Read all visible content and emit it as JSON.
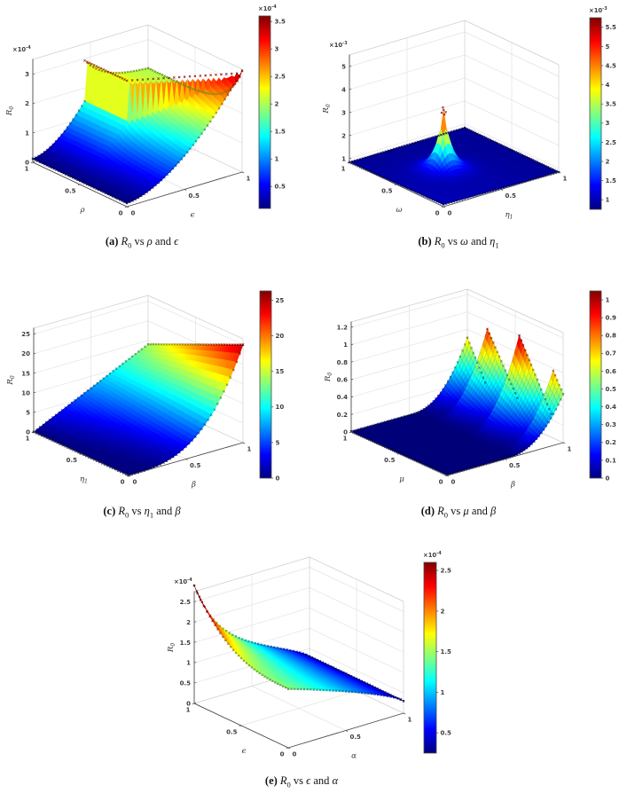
{
  "chart_data": [
    {
      "type": "surface3d",
      "caption": {
        "index": "(a)",
        "r": "R",
        "r_sub": "0",
        "vs": "vs",
        "var1": "ρ",
        "var1_sub": "",
        "and": "and",
        "var2": "ϵ",
        "var2_sub": ""
      },
      "x_axis": {
        "label": "ρ",
        "label_sub": "",
        "tick_values": [
          1,
          0.5,
          0
        ],
        "tick_labels": [
          "1",
          "0.5",
          "0"
        ],
        "range": [
          0,
          1
        ]
      },
      "y_axis": {
        "label": "ϵ",
        "label_sub": "",
        "tick_values": [
          0,
          0.5,
          1
        ],
        "tick_labels": [
          "0",
          "0.5",
          "1"
        ],
        "range": [
          0,
          1
        ]
      },
      "z_axis": {
        "label": "R",
        "label_sub": "0",
        "tick_values": [
          0,
          1,
          2,
          3
        ],
        "tick_labels": [
          "0",
          "1",
          "2",
          "3"
        ],
        "exp": "-4",
        "min": 0,
        "max": 3.5
      },
      "colorbar": {
        "tick_values": [
          0.5,
          1,
          1.5,
          2,
          2.5,
          3,
          3.5
        ],
        "tick_labels": [
          "0.5",
          "1",
          "1.5",
          "2",
          "2.5",
          "3",
          "3.5"
        ],
        "exp": "-4",
        "clim": [
          0.1,
          3.6
        ]
      },
      "surface_model": {
        "name": "fold_cliff",
        "desc": "R0 grows with ϵ; a discontinuous red cliff near ϵ≈0.45 separates the low blue bowl from the green upper sheet; max ≈3.4e-4 at ϵ=1, ρ=0",
        "params": {
          "floor": 0.12,
          "vc": 0.45,
          "pw": 1.7,
          "lowEdge": 1.55,
          "lowEdgeMax": 3.45,
          "upBack": 1.98,
          "upEdge": 2.95,
          "upEdgeMax": 3.4,
          "decay": 0.18
        },
        "crest_markers": true
      }
    },
    {
      "type": "surface3d",
      "caption": {
        "index": "(b)",
        "r": "R",
        "r_sub": "0",
        "vs": "vs",
        "var1": "ω",
        "var1_sub": "",
        "and": "and",
        "var2": "η",
        "var2_sub": "1"
      },
      "x_axis": {
        "label": "ω",
        "label_sub": "",
        "tick_values": [
          1,
          0.5,
          0
        ],
        "tick_labels": [
          "1",
          "0.5",
          "0"
        ],
        "range": [
          0,
          1
        ]
      },
      "y_axis": {
        "label": "η",
        "label_sub": "1",
        "tick_values": [
          0,
          0.5,
          1
        ],
        "tick_labels": [
          "0",
          "0.5",
          "1"
        ],
        "range": [
          0,
          1
        ]
      },
      "z_axis": {
        "label": "R",
        "label_sub": "0",
        "tick_values": [
          1,
          2,
          3,
          4,
          5
        ],
        "tick_labels": [
          "1",
          "2",
          "3",
          "4",
          "5"
        ],
        "exp": "-3",
        "min": 0.84,
        "max": 5.5
      },
      "colorbar": {
        "tick_values": [
          1,
          1.5,
          2,
          2.5,
          3,
          3.5,
          4,
          4.5,
          5,
          5.5
        ],
        "tick_labels": [
          "1",
          "1.5",
          "2",
          "2.5",
          "3",
          "3.5",
          "4",
          "4.5",
          "5",
          "5.5"
        ],
        "exp": "-3",
        "clim": [
          0.75,
          5.75
        ]
      },
      "surface_model": {
        "name": "spike",
        "desc": "Flat dark-blue sheet ≈0.9e-3 with one sharp red spike at ω≈0.5, η1≈0.41 topped by red asterisk markers",
        "params": {
          "base": 0.84,
          "slope": 0.1,
          "amp": 2.6,
          "cx": 0.5,
          "cy": 0.409,
          "w": 0.06
        },
        "color_clim": [
          0.78,
          3.5
        ],
        "tip_markers": true
      }
    },
    {
      "type": "surface3d",
      "caption": {
        "index": "(c)",
        "r": "R",
        "r_sub": "0",
        "vs": "vs",
        "var1": "η",
        "var1_sub": "1",
        "and": "and",
        "var2": "β",
        "var2_sub": ""
      },
      "x_axis": {
        "label": "η",
        "label_sub": "1",
        "tick_values": [
          1,
          0.5,
          0
        ],
        "tick_labels": [
          "1",
          "0.5",
          "0"
        ],
        "range": [
          0,
          1
        ]
      },
      "y_axis": {
        "label": "β",
        "label_sub": "",
        "tick_values": [
          0,
          0.5,
          1
        ],
        "tick_labels": [
          "0",
          "0.5",
          "1"
        ],
        "range": [
          0,
          1
        ]
      },
      "z_axis": {
        "label": "R",
        "label_sub": "0",
        "tick_values": [
          0,
          5,
          10,
          15,
          20,
          25
        ],
        "tick_labels": [
          "0",
          "5",
          "10",
          "15",
          "20",
          "25"
        ],
        "exp": "",
        "min": 0,
        "max": 26.5
      },
      "colorbar": {
        "tick_values": [
          0,
          5,
          10,
          15,
          20,
          25
        ],
        "tick_labels": [
          "0",
          "5",
          "10",
          "15",
          "20",
          "25"
        ],
        "exp": "",
        "clim": [
          0,
          26.3
        ]
      },
      "surface_model": {
        "name": "power_fan",
        "desc": "Dark-blue plane sweeping up with β to a red tip ≈24 at β=1, η1=0; back edge rises linearly to ≈14 (cyan)",
        "params": {
          "amp": 25,
          "drop": -11,
          "pbase": 3,
          "pspan": -2
        }
      }
    },
    {
      "type": "surface3d",
      "caption": {
        "index": "(d)",
        "r": "R",
        "r_sub": "0",
        "vs": "vs",
        "var1": "μ",
        "var1_sub": "",
        "and": "and",
        "var2": "β",
        "var2_sub": ""
      },
      "x_axis": {
        "label": "μ",
        "label_sub": "",
        "tick_values": [
          1,
          0.5,
          0
        ],
        "tick_labels": [
          "1",
          "0.5",
          "0"
        ],
        "range": [
          0,
          1
        ]
      },
      "y_axis": {
        "label": "β",
        "label_sub": "",
        "tick_values": [
          0,
          0.5,
          1
        ],
        "tick_labels": [
          "0",
          "0.5",
          "1"
        ],
        "range": [
          0,
          1
        ]
      },
      "z_axis": {
        "label": "R",
        "label_sub": "0",
        "tick_values": [
          0,
          0.2,
          0.4,
          0.6,
          0.8,
          1,
          1.2
        ],
        "tick_labels": [
          "0",
          "0.2",
          "0.4",
          "0.6",
          "0.8",
          "1",
          "1.2"
        ],
        "exp": "",
        "min": 0,
        "max": 1.26
      },
      "colorbar": {
        "tick_values": [
          0,
          0.1,
          0.2,
          0.3,
          0.4,
          0.5,
          0.6,
          0.7,
          0.8,
          0.9,
          1
        ],
        "tick_labels": [
          "0",
          "0.1",
          "0.2",
          "0.3",
          "0.4",
          "0.5",
          "0.6",
          "0.7",
          "0.8",
          "0.9",
          "1"
        ],
        "exp": "",
        "clim": [
          0,
          1.05
        ]
      },
      "surface_model": {
        "name": "sawtooth_fan",
        "desc": "Flat dark-blue plane for β<0.55; for larger β a fan of sawtooth blades rises toward β=1 with three red teeth peaking near 1.0",
        "params": {
          "v0": 0.52,
          "pw": 2.3,
          "teeth": [
            [
              0,
              0.12,
              0.55,
              0.8
            ],
            [
              0.12,
              0.47,
              0.25,
              1.02
            ],
            [
              0.47,
              0.8,
              0.25,
              0.92
            ],
            [
              0.8,
              1.001,
              0.25,
              0.7
            ]
          ]
        }
      }
    },
    {
      "type": "surface3d",
      "caption": {
        "index": "(e)",
        "r": "R",
        "r_sub": "0",
        "vs": "vs",
        "var1": "ϵ",
        "var1_sub": "",
        "and": "and",
        "var2": "α",
        "var2_sub": ""
      },
      "x_axis": {
        "label": "ϵ",
        "label_sub": "",
        "tick_values": [
          1,
          0.5,
          0
        ],
        "tick_labels": [
          "1",
          "0.5",
          "0"
        ],
        "range": [
          0,
          1
        ]
      },
      "y_axis": {
        "label": "α",
        "label_sub": "",
        "tick_values": [
          0,
          0.5,
          1
        ],
        "tick_labels": [
          "0",
          "0.5",
          "1"
        ],
        "range": [
          0,
          1
        ]
      },
      "z_axis": {
        "label": "R",
        "label_sub": "0",
        "tick_values": [
          0,
          0.5,
          1,
          1.5,
          2,
          2.5
        ],
        "tick_labels": [
          "0",
          "0.5",
          "1",
          "1.5",
          "2",
          "2.5"
        ],
        "exp": "-4",
        "min": 0,
        "max": 2.75
      },
      "colorbar": {
        "tick_values": [
          0.5,
          1,
          1.5,
          2,
          2.5
        ],
        "tick_labels": [
          "0.5",
          "1",
          "1.5",
          "2",
          "2.5"
        ],
        "exp": "-4",
        "clim": [
          0.25,
          2.6
        ]
      },
      "surface_model": {
        "name": "ridge_decay",
        "desc": "Red ridge ≈2.65e-4 at ϵ=1, α=0 decaying smoothly across a cyan plateau to dark blue ≈0.3e-4 at α=1",
        "params": {
          "base": 0.3,
          "bslope": 1.15,
          "bpow": 0.8,
          "amp": 1.45,
          "upow": 2.8,
          "k": 5,
          "k2": 0.45,
          "k3": 0.55
        }
      }
    }
  ]
}
